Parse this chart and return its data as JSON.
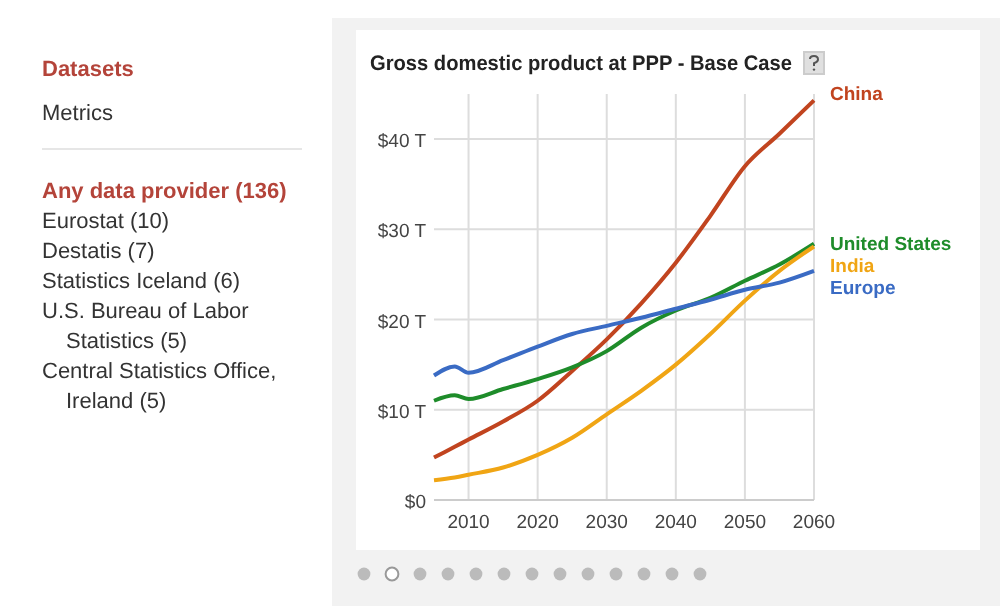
{
  "chart_data": {
    "type": "line",
    "title": "Gross domestic product at PPP - Base Case",
    "x": [
      2005,
      2008,
      2010,
      2015,
      2020,
      2025,
      2030,
      2035,
      2040,
      2045,
      2050,
      2055,
      2060
    ],
    "series": [
      {
        "name": "China",
        "color": "#c1441f",
        "values": [
          4.7,
          5.9,
          6.7,
          8.7,
          11,
          14.3,
          17.8,
          21.8,
          26.3,
          31.5,
          37,
          40.6,
          44.3
        ]
      },
      {
        "name": "United States",
        "color": "#1e8c2a",
        "values": [
          11,
          11.6,
          11.2,
          12.3,
          13.4,
          14.7,
          16.5,
          19.1,
          21,
          22.4,
          24.3,
          26.1,
          28.4
        ]
      },
      {
        "name": "India",
        "color": "#f0a514",
        "values": [
          2.2,
          2.5,
          2.8,
          3.6,
          5,
          6.9,
          9.5,
          12.1,
          15,
          18.4,
          22.1,
          25.4,
          28.1
        ]
      },
      {
        "name": "Europe",
        "color": "#3a6bc4",
        "values": [
          13.8,
          14.8,
          14.1,
          15.5,
          17,
          18.4,
          19.3,
          20.2,
          21.2,
          22.2,
          23.3,
          24.1,
          25.4
        ]
      }
    ],
    "xlim": [
      2005,
      2060
    ],
    "ylim": [
      0,
      45
    ],
    "xticks": [
      2010,
      2020,
      2030,
      2040,
      2050,
      2060
    ],
    "yticks": [
      {
        "value": 0,
        "label": "$0"
      },
      {
        "value": 10,
        "label": "$10 T"
      },
      {
        "value": 20,
        "label": "$20 T"
      },
      {
        "value": 30,
        "label": "$30 T"
      },
      {
        "value": 40,
        "label": "$40 T"
      }
    ],
    "grid": true,
    "legend": "right",
    "marker": "none",
    "line_style": "solid",
    "annotations": [
      "Datasets",
      "Metrics",
      "Any data provider (136)",
      "Eurostat (10)",
      "Destatis (7)",
      "Statistics Iceland (6)",
      "U.S. Bureau of Labor Statistics (5)",
      "Central Statistics Office, Ireland (5)"
    ]
  }
}
